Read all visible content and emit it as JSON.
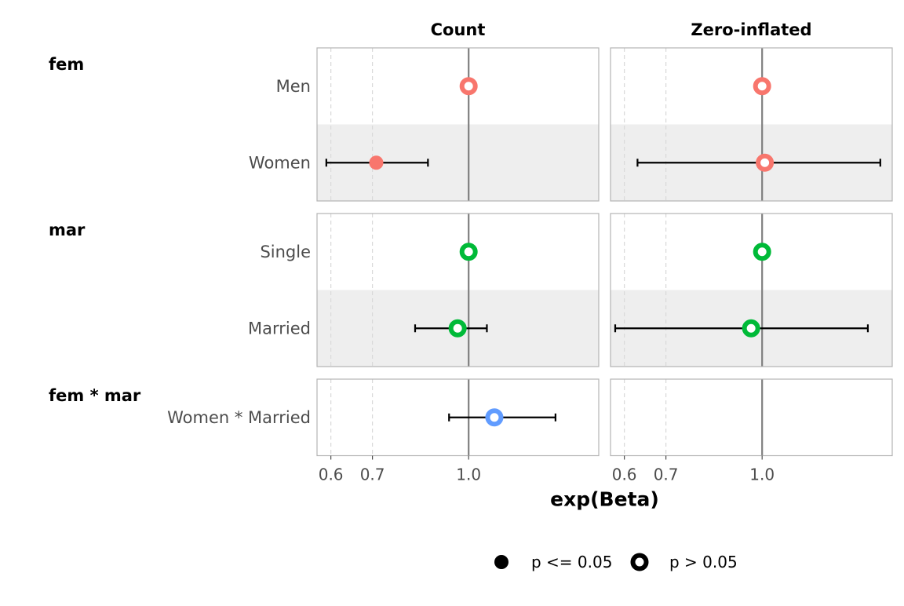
{
  "chart_data": {
    "type": "scatter",
    "subtype": "forest-plot",
    "facets": [
      "Count",
      "Zero-inflated"
    ],
    "xlabel": "exp(Beta)",
    "x_scale": "log",
    "xlim": [
      0.57,
      1.62
    ],
    "x_ticks": [
      0.6,
      0.7,
      1.0
    ],
    "x_tick_labels": [
      "0.6",
      "0.7",
      "1.0"
    ],
    "dashed_gridlines": [
      0.6,
      0.7
    ],
    "reference_line": 1.0,
    "groups": [
      {
        "name": "fem",
        "color": "#F8766D",
        "terms": [
          "Men",
          "Women"
        ]
      },
      {
        "name": "mar",
        "color": "#00BA38",
        "terms": [
          "Single",
          "Married"
        ]
      },
      {
        "name": "fem * mar",
        "color": "#619CFF",
        "terms": [
          "Women * Married"
        ]
      }
    ],
    "estimates": [
      {
        "group": "fem",
        "term": "Men",
        "facet": "Count",
        "value": 1.0,
        "low": null,
        "high": null,
        "significant": false
      },
      {
        "group": "fem",
        "term": "Women",
        "facet": "Count",
        "value": 0.71,
        "low": 0.59,
        "high": 0.86,
        "significant": true
      },
      {
        "group": "fem",
        "term": "Men",
        "facet": "Zero-inflated",
        "value": 1.0,
        "low": null,
        "high": null,
        "significant": false
      },
      {
        "group": "fem",
        "term": "Women",
        "facet": "Zero-inflated",
        "value": 1.01,
        "low": 0.63,
        "high": 1.55,
        "significant": false
      },
      {
        "group": "mar",
        "term": "Single",
        "facet": "Count",
        "value": 1.0,
        "low": null,
        "high": null,
        "significant": false
      },
      {
        "group": "mar",
        "term": "Married",
        "facet": "Count",
        "value": 0.96,
        "low": 0.82,
        "high": 1.07,
        "significant": false
      },
      {
        "group": "mar",
        "term": "Single",
        "facet": "Zero-inflated",
        "value": 1.0,
        "low": null,
        "high": null,
        "significant": false
      },
      {
        "group": "mar",
        "term": "Married",
        "facet": "Zero-inflated",
        "value": 0.96,
        "low": 0.58,
        "high": 1.48,
        "significant": false
      },
      {
        "group": "fem * mar",
        "term": "Women * Married",
        "facet": "Count",
        "value": 1.1,
        "low": 0.93,
        "high": 1.38,
        "significant": false
      }
    ],
    "legend": {
      "position": "bottom",
      "entries": [
        {
          "label": "p <= 0.05",
          "shape": "filled-circle"
        },
        {
          "label": "p > 0.05",
          "shape": "hollow-circle"
        }
      ]
    },
    "grid": false
  }
}
